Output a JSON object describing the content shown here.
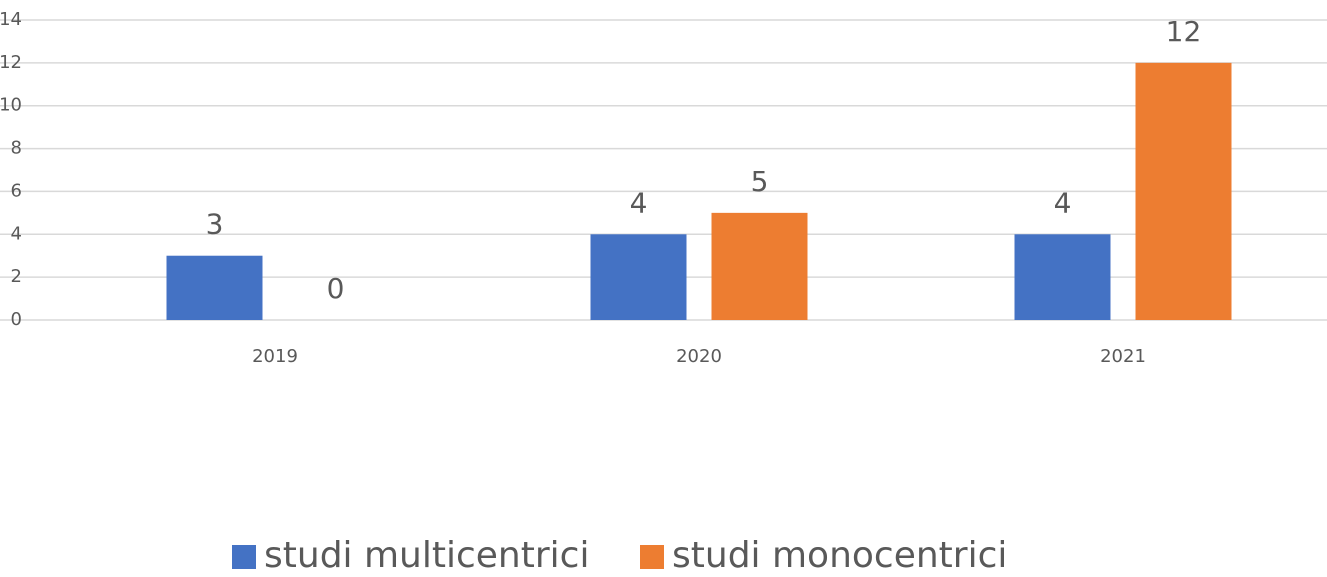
{
  "chart_data": {
    "type": "bar",
    "categories": [
      "2019",
      "2020",
      "2021"
    ],
    "series": [
      {
        "name": "studi multicentrici",
        "color": "#4472c4",
        "values": [
          3,
          4,
          4
        ]
      },
      {
        "name": "studi monocentrici",
        "color": "#ed7d31",
        "values": [
          0,
          5,
          12
        ]
      }
    ],
    "ylim": [
      0,
      14
    ],
    "yticks": [
      0,
      2,
      4,
      6,
      8,
      10,
      12,
      14
    ],
    "grid": true,
    "legend": "bottom"
  }
}
